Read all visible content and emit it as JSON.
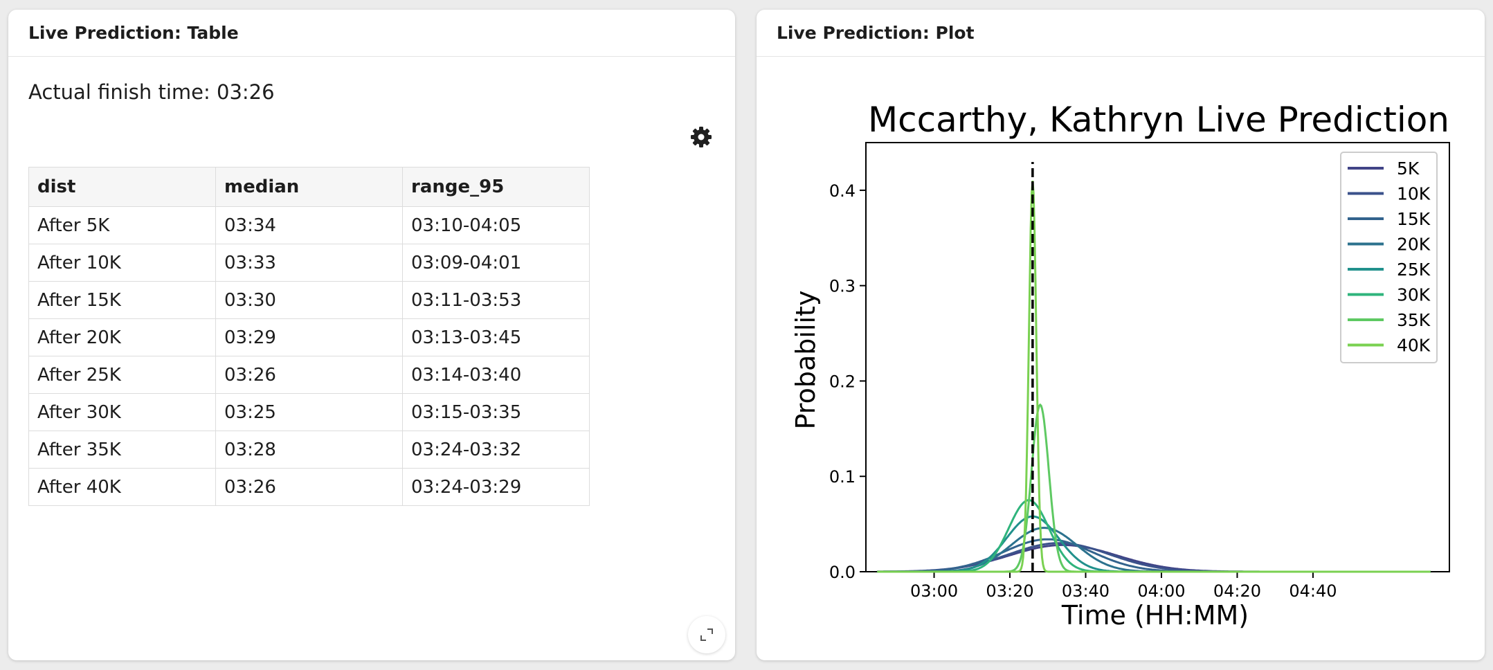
{
  "table_card": {
    "title": "Live Prediction: Table",
    "finish_text": "Actual finish time: 03:26",
    "settings_icon": "gear-icon",
    "expand_icon": "expand-icon",
    "columns": [
      "dist",
      "median",
      "range_95"
    ],
    "rows": [
      [
        "After 5K",
        "03:34",
        "03:10-04:05"
      ],
      [
        "After 10K",
        "03:33",
        "03:09-04:01"
      ],
      [
        "After 15K",
        "03:30",
        "03:11-03:53"
      ],
      [
        "After 20K",
        "03:29",
        "03:13-03:45"
      ],
      [
        "After 25K",
        "03:26",
        "03:14-03:40"
      ],
      [
        "After 30K",
        "03:25",
        "03:15-03:35"
      ],
      [
        "After 35K",
        "03:28",
        "03:24-03:32"
      ],
      [
        "After 40K",
        "03:26",
        "03:24-03:29"
      ]
    ]
  },
  "plot_card": {
    "title": "Live Prediction: Plot"
  },
  "chart_data": {
    "type": "line",
    "title": "Mccarthy, Kathryn Live Prediction",
    "xlabel": "Time (HH:MM)",
    "ylabel": "Probability",
    "x_unit": "minutes",
    "xlim": [
      162,
      316
    ],
    "ylim": [
      0,
      0.45
    ],
    "xticks": [
      180,
      200,
      220,
      240,
      260,
      280
    ],
    "xtick_labels": [
      "03:00",
      "03:20",
      "03:40",
      "04:00",
      "04:20",
      "04:40"
    ],
    "yticks": [
      0.0,
      0.1,
      0.2,
      0.3,
      0.4
    ],
    "ytick_labels": [
      "0.0",
      "0.1",
      "0.2",
      "0.3",
      "0.4"
    ],
    "legend_position": "top-right",
    "actual_finish_x": 206,
    "series": [
      {
        "name": "5K",
        "median": 214,
        "peak": 0.028,
        "color": "#414487"
      },
      {
        "name": "10K",
        "median": 213,
        "peak": 0.03,
        "color": "#3b528b"
      },
      {
        "name": "15K",
        "median": 210,
        "peak": 0.034,
        "color": "#33638d"
      },
      {
        "name": "20K",
        "median": 209,
        "peak": 0.046,
        "color": "#2c728e"
      },
      {
        "name": "25K",
        "median": 206,
        "peak": 0.058,
        "color": "#21918c"
      },
      {
        "name": "30K",
        "median": 205,
        "peak": 0.075,
        "color": "#2fb47c"
      },
      {
        "name": "35K",
        "median": 208,
        "peak": 0.175,
        "color": "#5ec962"
      },
      {
        "name": "40K",
        "median": 206,
        "peak": 0.41,
        "color": "#7ad151"
      }
    ]
  }
}
